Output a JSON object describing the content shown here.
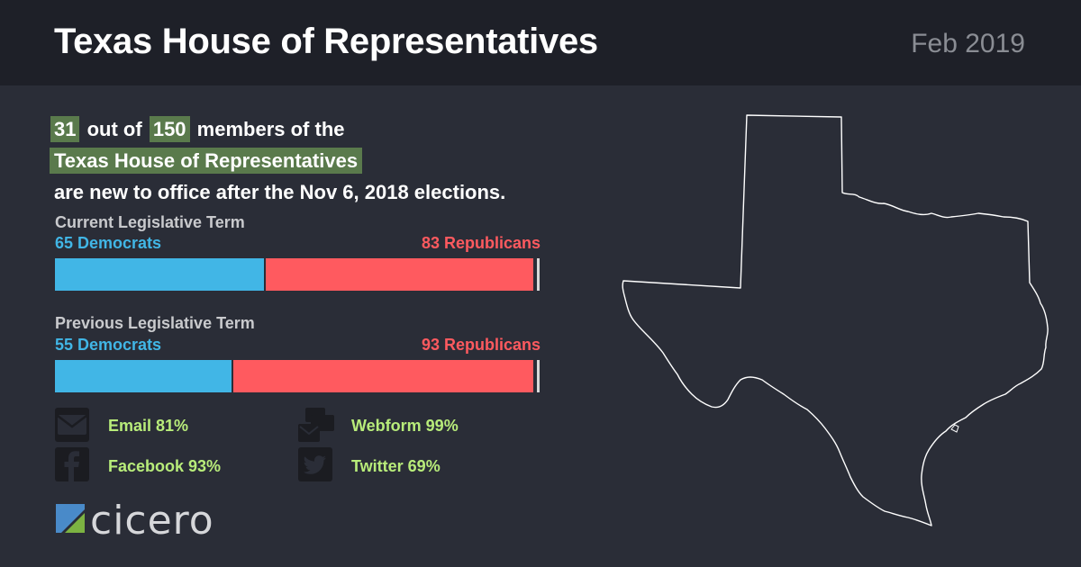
{
  "header": {
    "title": "Texas House of Representatives",
    "date": "Feb 2019"
  },
  "intro": {
    "new_count": "31",
    "text_out_of": "out of",
    "total_count": "150",
    "text_members": "members of the",
    "body_name": "Texas House of Representatives",
    "text_after": "are new to office after the Nov 6, 2018 elections."
  },
  "chart_data": [
    {
      "type": "bar",
      "title": "Current Legislative Term",
      "orientation": "horizontal-stacked",
      "total": 150,
      "series": [
        {
          "name": "Democrats",
          "value": 65,
          "label": "65 Democrats",
          "color": "#41b6e6"
        },
        {
          "name": "Republicans",
          "value": 83,
          "label": "83 Republicans",
          "color": "#ff5a5f"
        }
      ]
    },
    {
      "type": "bar",
      "title": "Previous Legislative Term",
      "orientation": "horizontal-stacked",
      "total": 150,
      "series": [
        {
          "name": "Democrats",
          "value": 55,
          "label": "55 Democrats",
          "color": "#41b6e6"
        },
        {
          "name": "Republicans",
          "value": 93,
          "label": "93 Republicans",
          "color": "#ff5a5f"
        }
      ]
    }
  ],
  "contact": [
    {
      "icon": "envelope-icon",
      "label": "Email 81%"
    },
    {
      "icon": "webform-icon",
      "label": "Webform 99%"
    },
    {
      "icon": "facebook-icon",
      "label": "Facebook 93%"
    },
    {
      "icon": "twitter-icon",
      "label": "Twitter 69%"
    }
  ],
  "logo": {
    "word": "cicero"
  },
  "colors": {
    "background": "#2a2d37",
    "header": "#1e2028",
    "highlight": "#5a7a4c",
    "democrat": "#41b6e6",
    "republican": "#ff5a5f",
    "contact_text": "#b8ec7a"
  }
}
